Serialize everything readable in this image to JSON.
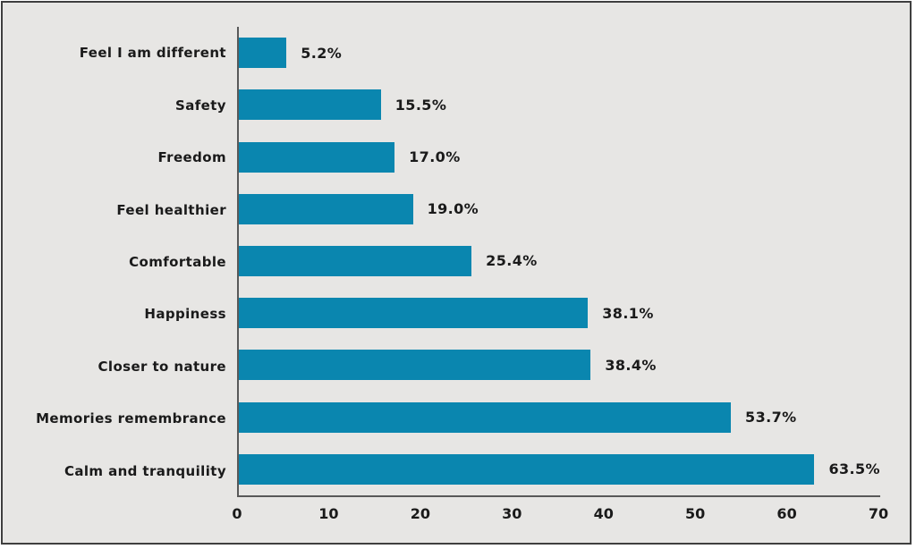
{
  "chart_data": {
    "type": "bar",
    "orientation": "horizontal",
    "title": "",
    "xlabel": "",
    "ylabel": "",
    "categories": [
      "Feel I am different",
      "Safety",
      "Freedom",
      "Feel healthier",
      "Comfortable",
      "Happiness",
      "Closer to nature",
      "Memories remembrance",
      "Calm and tranquility"
    ],
    "values": [
      5.2,
      15.5,
      17.0,
      19.0,
      25.4,
      38.1,
      38.4,
      53.7,
      63.5
    ],
    "value_labels": [
      "5.2%",
      "15.5%",
      "17.0%",
      "19.0%",
      "25.4%",
      "38.1%",
      "38.4%",
      "53.7%",
      "63.5%"
    ],
    "xlim": [
      0,
      70
    ],
    "xticks": [
      0,
      10,
      20,
      30,
      40,
      50,
      60,
      70
    ],
    "grid": false,
    "legend": false,
    "bar_color": "#0a86af",
    "background_color": "#e7e6e4",
    "axis_line_color": "#595959",
    "border_color": "#3f3f3f"
  }
}
